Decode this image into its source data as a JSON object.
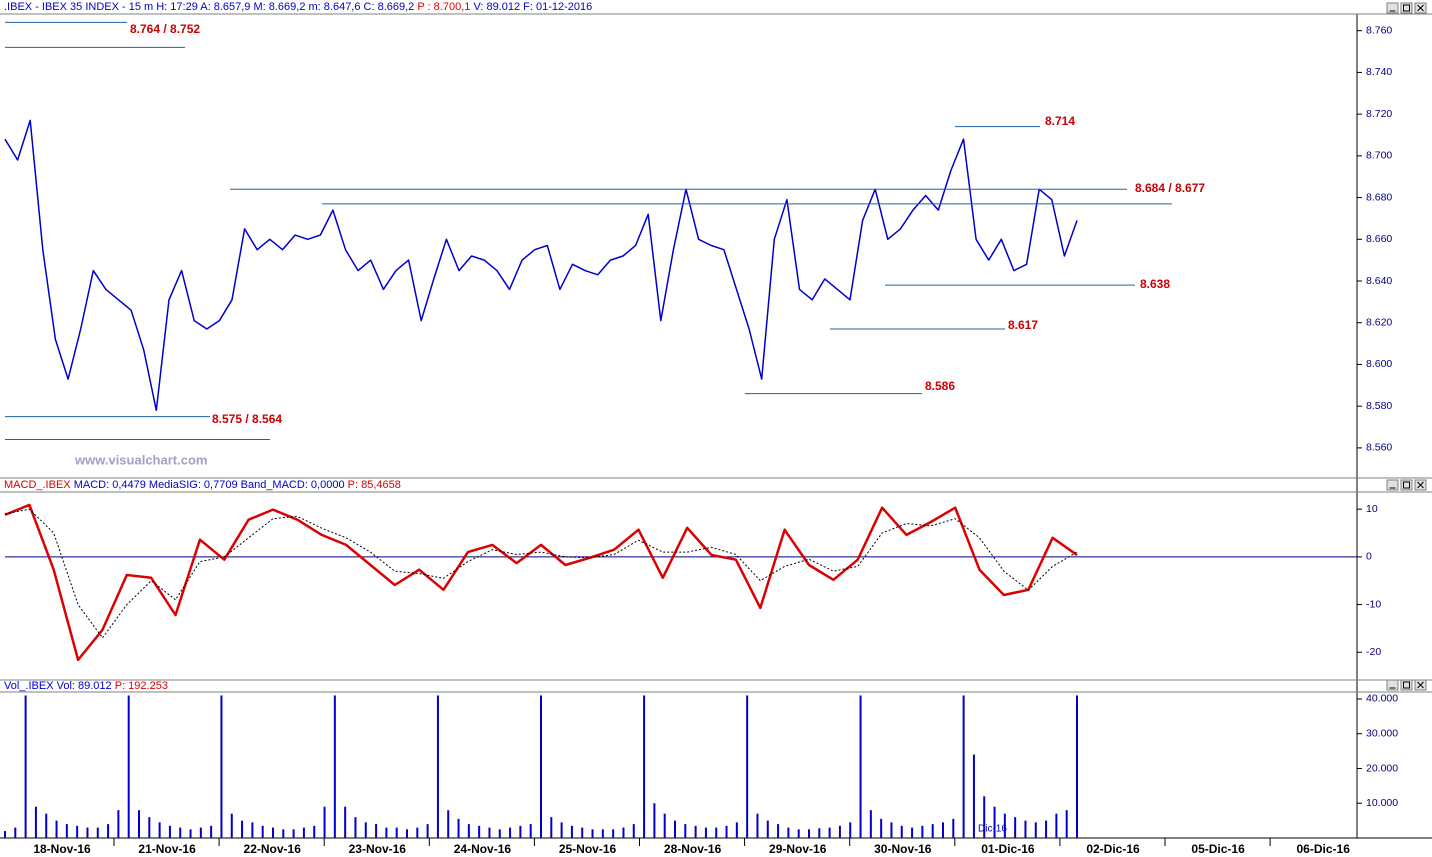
{
  "chart_data": [
    {
      "type": "line",
      "title": ".IBEX - IBEX 35 INDEX - 15 m",
      "info": "H: 17:29 A: 8.657,9 M: 8.669,2 m: 8.647,6 C: 8.669,2",
      "info_red": "P : 8.700,1",
      "info_end": "V: 89.012 F: 01-12-2016",
      "color": "#0000cc",
      "values": [
        8.708,
        8.698,
        8.717,
        8.655,
        8.612,
        8.593,
        8.617,
        8.645,
        8.636,
        8.631,
        8.626,
        8.607,
        8.578,
        8.631,
        8.645,
        8.621,
        8.617,
        8.621,
        8.631,
        8.665,
        8.655,
        8.66,
        8.655,
        8.662,
        8.66,
        8.662,
        8.674,
        8.655,
        8.645,
        8.65,
        8.636,
        8.645,
        8.65,
        8.621,
        8.641,
        8.66,
        8.645,
        8.652,
        8.65,
        8.645,
        8.636,
        8.65,
        8.655,
        8.657,
        8.636,
        8.648,
        8.645,
        8.643,
        8.65,
        8.652,
        8.657,
        8.672,
        8.621,
        8.655,
        8.684,
        8.66,
        8.657,
        8.655,
        8.636,
        8.617,
        8.593,
        8.66,
        8.679,
        8.636,
        8.631,
        8.641,
        8.636,
        8.631,
        8.669,
        8.684,
        8.66,
        8.665,
        8.674,
        8.681,
        8.674,
        8.693,
        8.708,
        8.66,
        8.65,
        8.66,
        8.645,
        8.648,
        8.684,
        8.679,
        8.652,
        8.669
      ],
      "ylim": [
        8.5494,
        8.768
      ],
      "yticks": [
        {
          "value": 8.56,
          "label": "8.560"
        },
        {
          "value": 8.58,
          "label": "8.580"
        },
        {
          "value": 8.6,
          "label": "8.600"
        },
        {
          "value": 8.62,
          "label": "8.620"
        },
        {
          "value": 8.64,
          "label": "8.640"
        },
        {
          "value": 8.66,
          "label": "8.660"
        },
        {
          "value": 8.68,
          "label": "8.680"
        },
        {
          "value": 8.7,
          "label": "8.700"
        },
        {
          "value": 8.72,
          "label": "8.720"
        },
        {
          "value": 8.74,
          "label": "8.740"
        },
        {
          "value": 8.76,
          "label": "8.760"
        }
      ],
      "annotations": [
        {
          "label": "8.764 / 8.752",
          "levels": [
            8.764,
            8.752
          ]
        },
        {
          "label": "8.714",
          "levels": [
            8.714
          ]
        },
        {
          "label": "8.684 / 8.677",
          "levels": [
            8.684,
            8.677
          ]
        },
        {
          "label": "8.638",
          "levels": [
            8.638
          ]
        },
        {
          "label": "8.617",
          "levels": [
            8.617
          ]
        },
        {
          "label": "8.586",
          "levels": [
            8.586
          ]
        },
        {
          "label": "8.575 / 8.564",
          "levels": [
            8.575,
            8.564
          ]
        }
      ],
      "watermark": "www.visualchart.com"
    },
    {
      "type": "line",
      "title": "MACD_.IBEX",
      "info": "MACD: 0,4479 MediaSIG: 0,7709 Band_MACD: 0,0000",
      "info_red": "P: 85,4658",
      "series": [
        {
          "color": "#dd0000",
          "values": [
            8.8,
            10.9,
            -2.7,
            -21.6,
            -15.3,
            -3.8,
            -4.4,
            -12.2,
            3.6,
            -0.6,
            7.8,
            9.9,
            7.8,
            4.6,
            2.5,
            -1.7,
            -5.9,
            -2.7,
            -6.9,
            1.0,
            2.5,
            -1.3,
            2.5,
            -1.7,
            -0.2,
            1.5,
            5.7,
            -4.4,
            6.1,
            0.4,
            -0.6,
            -10.7,
            5.7,
            -1.7,
            -4.8,
            -0.6,
            10.3,
            4.6,
            7.3,
            10.3,
            -2.7,
            -8.0,
            -6.9,
            4.0,
            0.4
          ]
        },
        {
          "color": "#000000",
          "values": [
            9,
            10,
            5,
            -10,
            -17,
            -10,
            -5,
            -9,
            -1,
            0,
            4,
            8,
            8.5,
            6,
            4,
            1,
            -3,
            -3.5,
            -4.5,
            -1,
            1.5,
            0.5,
            1,
            0,
            -0.2,
            0.5,
            3.5,
            1,
            1,
            2,
            0.5,
            -5,
            -2,
            -0.5,
            -3,
            -2,
            5,
            7,
            6.5,
            8,
            4,
            -3,
            -7,
            -2,
            1
          ]
        }
      ],
      "ylim": [
        -25.4,
        13.6
      ],
      "yticks": [
        -20,
        -10,
        0,
        10
      ]
    },
    {
      "type": "bar",
      "title": "Vol_.IBEX",
      "info": "Vol: 89.012",
      "info_red": "P: 192.253",
      "color": "#0000cc",
      "values": [
        2000,
        3000,
        41000,
        9000,
        7000,
        5000,
        4000,
        3500,
        3000,
        3000,
        4000,
        8000,
        41000,
        8000,
        6000,
        4500,
        3500,
        3000,
        2500,
        3000,
        3500,
        41000,
        7000,
        5000,
        4500,
        3500,
        3000,
        2500,
        2500,
        3000,
        3500,
        9000,
        41000,
        9000,
        6000,
        4500,
        4000,
        3000,
        3000,
        2500,
        3000,
        4000,
        41000,
        8000,
        5500,
        4000,
        3500,
        3000,
        2500,
        3000,
        3500,
        4000,
        41000,
        6000,
        4500,
        3500,
        3000,
        2500,
        2500,
        2500,
        3000,
        4000,
        41000,
        10000,
        7000,
        5000,
        4000,
        3500,
        3000,
        3000,
        3500,
        4500,
        41000,
        7000,
        5000,
        4000,
        3000,
        2500,
        2500,
        2800,
        3000,
        3500,
        4500,
        41000,
        8000,
        5500,
        4500,
        3500,
        3000,
        3500,
        4000,
        4500,
        5500,
        41000,
        24000,
        12000,
        9000,
        7000,
        6000,
        5000,
        4500,
        5000,
        7000,
        8000,
        41000
      ],
      "ylim": [
        0,
        42000
      ],
      "yticks": [
        {
          "value": 10000,
          "label": "10.000"
        },
        {
          "value": 20000,
          "label": "20.000"
        },
        {
          "value": 30000,
          "label": "30.000"
        },
        {
          "value": 40000,
          "label": "40.000"
        }
      ],
      "note": "Dic-16"
    }
  ],
  "date_axis": [
    "18-Nov-16",
    "21-Nov-16",
    "22-Nov-16",
    "23-Nov-16",
    "24-Nov-16",
    "25-Nov-16",
    "28-Nov-16",
    "29-Nov-16",
    "30-Nov-16",
    "01-Dic-16",
    "02-Dic-16",
    "05-Dic-16",
    "06-Dic-16"
  ]
}
